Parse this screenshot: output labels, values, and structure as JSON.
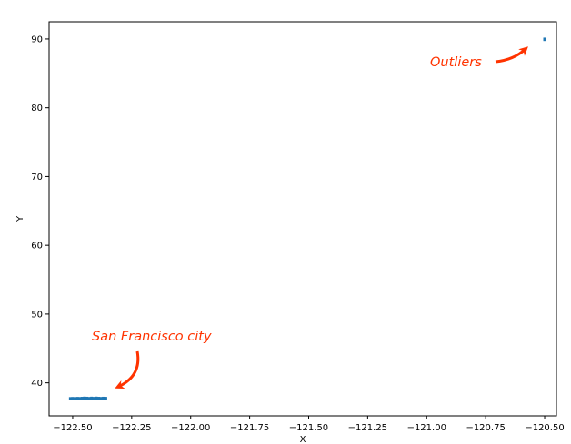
{
  "chart_data": {
    "type": "scatter",
    "xlabel": "X",
    "ylabel": "Y",
    "xlim": [
      -122.6,
      -120.45
    ],
    "ylim": [
      35.2,
      92.5
    ],
    "xticks": [
      -122.5,
      -122.25,
      -122.0,
      -121.75,
      -121.5,
      -121.25,
      -121.0,
      -120.75,
      -120.5
    ],
    "xtick_labels": [
      "−122.50",
      "−122.25",
      "−122.00",
      "−121.75",
      "−121.50",
      "−121.25",
      "−121.00",
      "−120.75",
      "−120.50"
    ],
    "yticks": [
      40,
      50,
      60,
      70,
      80,
      90
    ],
    "ytick_labels": [
      "40",
      "50",
      "60",
      "70",
      "80",
      "90"
    ],
    "grid": false,
    "marker_color": "#1f77b4",
    "annotation_color": "#ff3300",
    "series": [
      {
        "points": [
          [
            -122.51,
            37.73
          ],
          [
            -122.5,
            37.75
          ],
          [
            -122.49,
            37.72
          ],
          [
            -122.48,
            37.76
          ],
          [
            -122.47,
            37.74
          ],
          [
            -122.46,
            37.77
          ],
          [
            -122.45,
            37.73
          ],
          [
            -122.44,
            37.78
          ],
          [
            -122.43,
            37.75
          ],
          [
            -122.42,
            37.71
          ],
          [
            -122.42,
            37.79
          ],
          [
            -122.41,
            37.76
          ],
          [
            -122.4,
            37.74
          ],
          [
            -122.4,
            37.8
          ],
          [
            -122.39,
            37.72
          ],
          [
            -122.39,
            37.77
          ],
          [
            -122.38,
            37.75
          ],
          [
            -122.37,
            37.73
          ],
          [
            -122.37,
            37.78
          ],
          [
            -122.36,
            37.74
          ],
          [
            -122.36,
            37.76
          ],
          [
            -122.45,
            37.8
          ],
          [
            -122.47,
            37.7
          ],
          [
            -122.44,
            37.71
          ],
          [
            -120.5,
            90.0
          ],
          [
            -120.5,
            89.9
          ]
        ]
      }
    ],
    "annotations": [
      {
        "text": "Outliers",
        "target": [
          -120.5,
          90.0
        ]
      },
      {
        "text": "San Francisco city",
        "target": [
          -122.36,
          38.2
        ]
      }
    ]
  }
}
